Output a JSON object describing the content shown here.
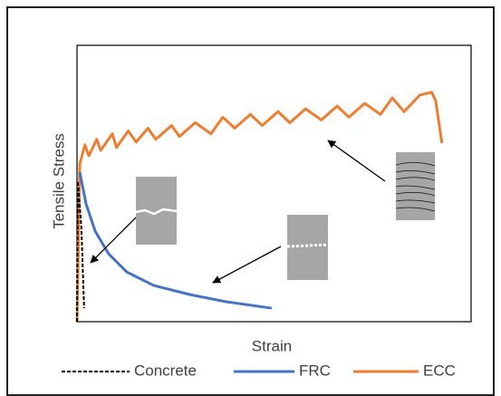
{
  "chart_data": {
    "type": "line",
    "x_label": "Strain",
    "y_label": "Tensile Stress",
    "xlim": [
      0,
      100
    ],
    "ylim": [
      0,
      100
    ],
    "series": [
      {
        "name": "Concrete",
        "color": "#000000",
        "style": "dashed",
        "x": [
          0,
          0.2,
          1.1,
          1.8
        ],
        "values": [
          0,
          50.8,
          34.4,
          4.9
        ]
      },
      {
        "name": "FRC",
        "color": "#4472c4",
        "style": "solid",
        "x": [
          0.7,
          2.3,
          4.6,
          8.0,
          12.6,
          19.5,
          28.7,
          37.9,
          49.4
        ],
        "values": [
          54.1,
          42.6,
          32.8,
          24.6,
          18.0,
          13.1,
          9.8,
          7.2,
          4.9
        ]
      },
      {
        "name": "ECC",
        "color": "#ed7d31",
        "style": "solid",
        "x": [
          0,
          0.7,
          2,
          3,
          5,
          6,
          9,
          10,
          13,
          15,
          18,
          20,
          24,
          26,
          30,
          34,
          37,
          40,
          44,
          47,
          51,
          54,
          58,
          62,
          66,
          69,
          73,
          77,
          80,
          83,
          87,
          90,
          91,
          92.6
        ],
        "values": [
          0,
          57,
          64,
          60,
          66,
          62,
          68,
          63,
          69,
          65,
          70,
          66,
          71,
          67,
          72,
          68,
          74,
          70,
          75,
          71,
          76,
          72,
          77,
          73,
          78,
          74,
          79,
          75,
          81,
          76,
          82,
          83,
          80,
          64.6
        ]
      }
    ]
  }
}
